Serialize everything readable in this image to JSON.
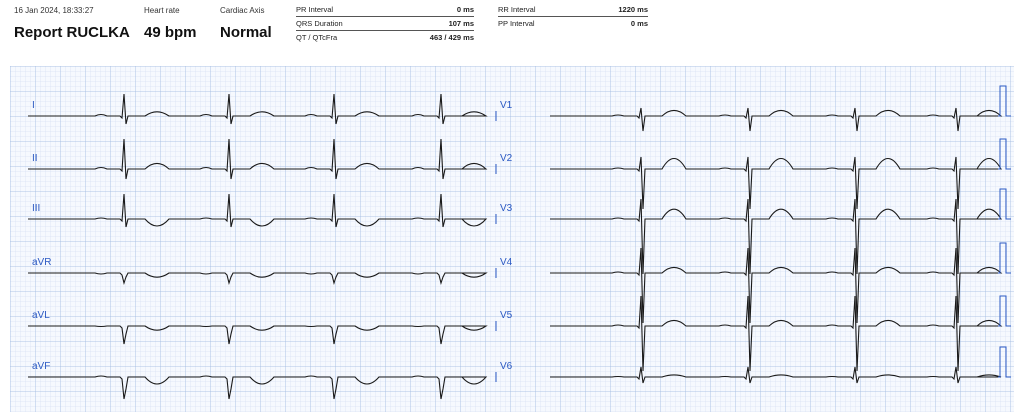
{
  "header": {
    "datetime": "16 Jan 2024, 18:33:27",
    "report_title": "Report RUCLKA",
    "heart_rate": {
      "label": "Heart rate",
      "value": "49 bpm"
    },
    "cardiac_axis": {
      "label": "Cardiac Axis",
      "value": "Normal"
    }
  },
  "measurements_left": [
    {
      "label": "PR Interval",
      "value": "0 ms"
    },
    {
      "label": "QRS Duration",
      "value": "107 ms"
    },
    {
      "label": "QT / QTcFra",
      "value": "463 / 429 ms"
    }
  ],
  "measurements_right": [
    {
      "label": "RR Interval",
      "value": "1220 ms"
    },
    {
      "label": "PP Interval",
      "value": "0 ms"
    }
  ],
  "leads": {
    "left": [
      "I",
      "II",
      "III",
      "aVR",
      "aVL",
      "aVF"
    ],
    "right": [
      "V1",
      "V2",
      "V3",
      "V4",
      "V5",
      "V6"
    ]
  },
  "colors": {
    "grid_minor": "#c9d8ef",
    "grid_major": "#9fb9e0",
    "trace": "#1a1a1a",
    "lead_label": "#2b59c3"
  }
}
